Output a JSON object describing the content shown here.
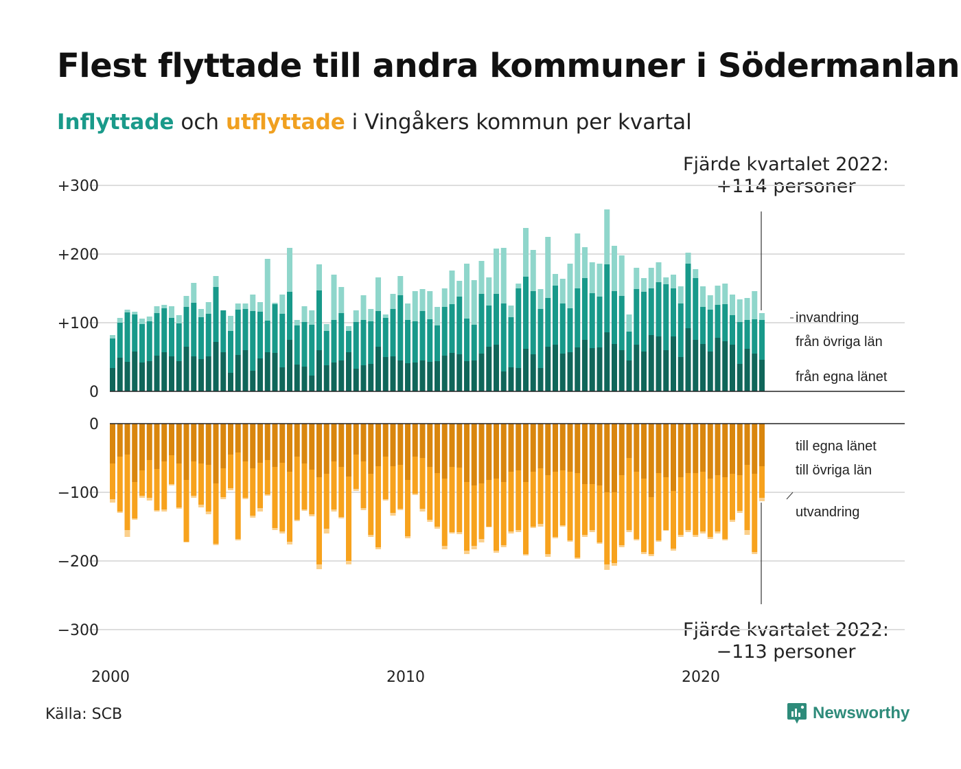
{
  "title": "Flest flyttade till andra kommuner i Södermanland",
  "subtitle": {
    "in_word": "Inflyttade",
    "mid": " och ",
    "out_word": "utflyttade",
    "rest": " i Vingåkers kommun per kvartal"
  },
  "annotation_top": {
    "line1": "Fjärde kvartalet 2022:",
    "line2": "+114 personer"
  },
  "annotation_bottom": {
    "line1": "Fjärde kvartalet 2022:",
    "line2": "−113 personer"
  },
  "source": "Källa: SCB",
  "brand": "Newsworthy",
  "colors": {
    "in_own": "#10665a",
    "in_other": "#18998a",
    "in_imm": "#8fd6cb",
    "out_own": "#d9860e",
    "out_other": "#f7a21d",
    "out_emi": "#fbd08c",
    "grid": "#dddddd",
    "axis": "#222222"
  },
  "chart_data": {
    "type": "bar",
    "stacked": true,
    "x_start": "2000 Q1",
    "x_end": "2022 Q4",
    "xticks": [
      "2000",
      "2010",
      "2020"
    ],
    "top_panel": {
      "ylim": [
        0,
        300
      ],
      "yticks": [
        "0",
        "+100",
        "+200",
        "+300"
      ],
      "series_labels": [
        "invandring",
        "från övriga län",
        "från egna länet"
      ],
      "total": [
        82,
        107,
        119,
        116,
        106,
        109,
        124,
        126,
        124,
        111,
        139,
        158,
        120,
        130,
        168,
        118,
        110,
        128,
        128,
        141,
        130,
        193,
        129,
        141,
        209,
        104,
        124,
        118,
        185,
        98,
        170,
        152,
        95,
        118,
        140,
        120,
        166,
        112,
        142,
        168,
        128,
        146,
        149,
        146,
        123,
        150,
        176,
        161,
        186,
        162,
        190,
        166,
        208,
        209,
        125,
        157,
        238,
        206,
        149,
        225,
        171,
        164,
        186,
        230,
        210,
        188,
        186,
        265,
        212,
        198,
        112,
        180,
        165,
        180,
        188,
        166,
        170,
        153,
        202,
        178,
        153,
        140,
        154,
        157,
        141,
        134,
        136,
        146,
        114
      ],
      "own_county": [
        34,
        49,
        43,
        58,
        42,
        44,
        52,
        57,
        51,
        44,
        65,
        51,
        47,
        51,
        72,
        57,
        27,
        53,
        60,
        30,
        48,
        57,
        56,
        35,
        75,
        39,
        36,
        23,
        60,
        38,
        42,
        45,
        57,
        33,
        38,
        40,
        65,
        50,
        51,
        45,
        41,
        42,
        45,
        43,
        44,
        52,
        56,
        54,
        44,
        45,
        55,
        65,
        68,
        29,
        35,
        34,
        62,
        54,
        34,
        65,
        68,
        55,
        57,
        64,
        75,
        63,
        64,
        86,
        69,
        60,
        45,
        68,
        58,
        82,
        80,
        60,
        80,
        50,
        92,
        75,
        69,
        58,
        78,
        73,
        68,
        40,
        62,
        55,
        46
      ],
      "other_county": [
        77,
        100,
        115,
        112,
        98,
        102,
        114,
        121,
        107,
        99,
        123,
        129,
        108,
        113,
        152,
        118,
        88,
        119,
        120,
        117,
        116,
        103,
        127,
        113,
        145,
        96,
        101,
        97,
        147,
        88,
        104,
        114,
        88,
        101,
        104,
        102,
        117,
        107,
        120,
        140,
        104,
        102,
        117,
        105,
        96,
        123,
        127,
        138,
        106,
        97,
        142,
        125,
        142,
        128,
        108,
        150,
        167,
        146,
        120,
        136,
        154,
        128,
        121,
        150,
        165,
        143,
        138,
        185,
        146,
        139,
        87,
        149,
        145,
        150,
        159,
        156,
        150,
        128,
        186,
        165,
        123,
        119,
        126,
        127,
        111,
        101,
        104,
        105,
        104
      ]
    },
    "bottom_panel": {
      "ylim": [
        -300,
        0
      ],
      "yticks": [
        "0",
        "−100",
        "−200",
        "−300"
      ],
      "series_labels": [
        "till egna länet",
        "till övriga län",
        "utvandring"
      ],
      "total": [
        -115,
        -130,
        -165,
        -140,
        -108,
        -112,
        -128,
        -128,
        -90,
        -124,
        -173,
        -108,
        -122,
        -132,
        -177,
        -110,
        -97,
        -170,
        -110,
        -137,
        -128,
        -105,
        -155,
        -160,
        -176,
        -142,
        -127,
        -135,
        -212,
        -160,
        -128,
        -138,
        -205,
        -98,
        -126,
        -165,
        -183,
        -112,
        -134,
        -126,
        -167,
        -104,
        -128,
        -143,
        -153,
        -183,
        -160,
        -161,
        -190,
        -183,
        -173,
        -151,
        -188,
        -180,
        -160,
        -158,
        -192,
        -152,
        -150,
        -194,
        -167,
        -150,
        -172,
        -197,
        -165,
        -158,
        -175,
        -213,
        -207,
        -180,
        -158,
        -170,
        -190,
        -193,
        -172,
        -156,
        -185,
        -165,
        -158,
        -165,
        -160,
        -168,
        -160,
        -170,
        -143,
        -130,
        -162,
        -190,
        -113
      ],
      "own_county": [
        -58,
        -48,
        -45,
        -85,
        -68,
        -53,
        -66,
        -55,
        -46,
        -58,
        -82,
        -55,
        -58,
        -60,
        -87,
        -65,
        -45,
        -42,
        -55,
        -65,
        -57,
        -53,
        -63,
        -57,
        -70,
        -48,
        -58,
        -67,
        -78,
        -73,
        -55,
        -63,
        -77,
        -45,
        -55,
        -73,
        -62,
        -48,
        -62,
        -60,
        -82,
        -48,
        -50,
        -63,
        -72,
        -80,
        -63,
        -64,
        -85,
        -90,
        -87,
        -82,
        -80,
        -85,
        -70,
        -68,
        -85,
        -70,
        -65,
        -75,
        -70,
        -68,
        -70,
        -72,
        -88,
        -88,
        -90,
        -100,
        -100,
        -75,
        -50,
        -70,
        -80,
        -107,
        -72,
        -78,
        -98,
        -78,
        -72,
        -72,
        -70,
        -80,
        -75,
        -78,
        -73,
        -75,
        -60,
        -73,
        -62
      ],
      "other_county": [
        -110,
        -128,
        -155,
        -138,
        -105,
        -108,
        -126,
        -125,
        -88,
        -122,
        -172,
        -105,
        -118,
        -128,
        -175,
        -107,
        -94,
        -168,
        -108,
        -134,
        -123,
        -103,
        -152,
        -157,
        -172,
        -140,
        -125,
        -132,
        -205,
        -153,
        -125,
        -136,
        -200,
        -95,
        -123,
        -162,
        -180,
        -110,
        -130,
        -124,
        -164,
        -102,
        -124,
        -140,
        -150,
        -178,
        -158,
        -158,
        -185,
        -178,
        -168,
        -150,
        -185,
        -177,
        -157,
        -155,
        -190,
        -150,
        -146,
        -190,
        -165,
        -148,
        -170,
        -195,
        -162,
        -155,
        -173,
        -205,
        -203,
        -177,
        -155,
        -168,
        -187,
        -190,
        -170,
        -155,
        -182,
        -162,
        -155,
        -162,
        -157,
        -165,
        -157,
        -168,
        -140,
        -127,
        -155,
        -187,
        -108
      ]
    }
  }
}
